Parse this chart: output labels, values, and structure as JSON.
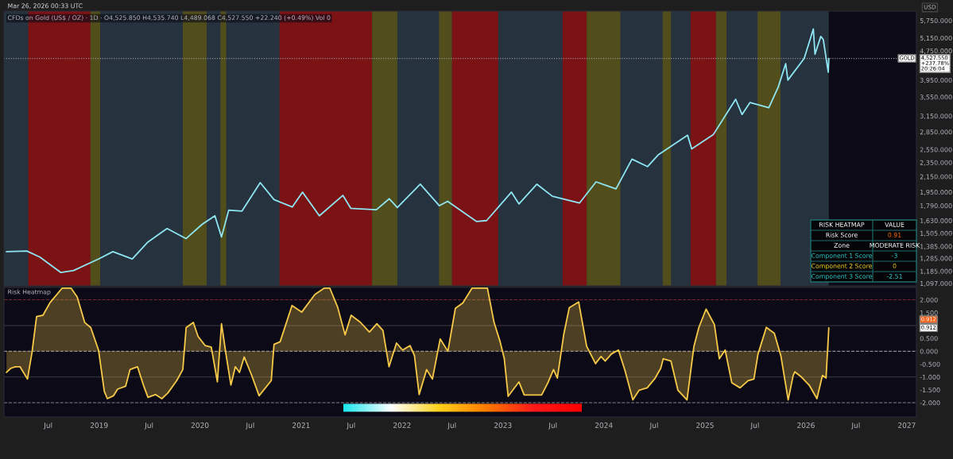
{
  "chart_data": [
    {
      "type": "line",
      "title": "CFDs on Gold (US$ / OZ) · 1D · O4,525.850 H4,535.740 L4,489.068 C4,527.550 +22.240 (+0.49%) Vol 0",
      "log": true,
      "xlim": [
        "2018-01-22",
        "2027-02-05"
      ],
      "ylim": [
        1080,
        6100
      ],
      "tick_labels": "y",
      "yticks": [
        {
          "value": 1097,
          "label": "1,097.000"
        },
        {
          "value": 1185,
          "label": "1,185.000"
        },
        {
          "value": 1285,
          "label": "1,285.000"
        },
        {
          "value": 1385,
          "label": "1,385.000"
        },
        {
          "value": 1505,
          "label": "1,505.000"
        },
        {
          "value": 1630,
          "label": "1,630.000"
        },
        {
          "value": 1790,
          "label": "1,790.000"
        },
        {
          "value": 1950,
          "label": "1,950.000"
        },
        {
          "value": 2150,
          "label": "2,150.000"
        },
        {
          "value": 2350,
          "label": "2,350.000"
        },
        {
          "value": 2550,
          "label": "2,550.000"
        },
        {
          "value": 2850,
          "label": "2,850.000"
        },
        {
          "value": 3150,
          "label": "3,150.000"
        },
        {
          "value": 3550,
          "label": "3,550.000"
        },
        {
          "value": 3950,
          "label": "3,950.000"
        },
        {
          "value": 4750,
          "label": "4,750.000"
        },
        {
          "value": 5150,
          "label": "5,150.000"
        },
        {
          "value": 5750,
          "label": "5,750.000"
        }
      ],
      "bands": [
        {
          "axis": "x",
          "from": "2018-01-22",
          "to": "2026-03-25",
          "color": "#2b3a45"
        },
        {
          "axis": "x",
          "from": "2018-04-20",
          "to": "2018-12-01",
          "color": "#8b0d0d"
        },
        {
          "axis": "x",
          "from": "2018-12-01",
          "to": "2019-01-05",
          "color": "#5a5416"
        },
        {
          "axis": "x",
          "from": "2019-10-31",
          "to": "2020-01-25",
          "color": "#5a5416"
        },
        {
          "axis": "x",
          "from": "2020-03-15",
          "to": "2020-04-05",
          "color": "#5a5416"
        },
        {
          "axis": "x",
          "from": "2020-10-15",
          "to": "2021-09-15",
          "color": "#8b0d0d"
        },
        {
          "axis": "x",
          "from": "2021-09-15",
          "to": "2021-12-15",
          "color": "#5a5416"
        },
        {
          "axis": "x",
          "from": "2022-05-15",
          "to": "2022-07-01",
          "color": "#5a5416"
        },
        {
          "axis": "x",
          "from": "2022-07-01",
          "to": "2022-12-15",
          "color": "#8b0d0d"
        },
        {
          "axis": "x",
          "from": "2023-08-05",
          "to": "2023-10-31",
          "color": "#8b0d0d"
        },
        {
          "axis": "x",
          "from": "2023-10-31",
          "to": "2024-03-01",
          "color": "#5a5416"
        },
        {
          "axis": "x",
          "from": "2024-08-01",
          "to": "2024-08-31",
          "color": "#5a5416"
        },
        {
          "axis": "x",
          "from": "2024-11-10",
          "to": "2025-02-10",
          "color": "#8b0d0d"
        },
        {
          "axis": "x",
          "from": "2025-02-10",
          "to": "2025-03-20",
          "color": "#5a5416"
        },
        {
          "axis": "x",
          "from": "2025-07-10",
          "to": "2025-10-01",
          "color": "#5a5416"
        }
      ],
      "ref_lines": [
        {
          "axis": "y",
          "value": 4527.55,
          "color": "#9598a1",
          "line_style": "dotted"
        }
      ],
      "annotations": [
        "Mar 26, 2026 00:33 UTC",
        "USD",
        "GOLD",
        "4,527.550\n+237.78%\n20:26:04"
      ],
      "x": [
        "2018-01-31",
        "2018-04-15",
        "2018-06-01",
        "2018-08-16",
        "2018-10-01",
        "2018-12-31",
        "2019-02-20",
        "2019-05-01",
        "2019-06-25",
        "2019-09-04",
        "2019-11-12",
        "2020-01-08",
        "2020-02-24",
        "2020-03-19",
        "2020-04-14",
        "2020-06-01",
        "2020-08-06",
        "2020-09-25",
        "2020-11-30",
        "2021-01-06",
        "2021-03-08",
        "2021-06-01",
        "2021-06-30",
        "2021-09-30",
        "2021-11-16",
        "2021-12-15",
        "2022-03-08",
        "2022-05-16",
        "2022-06-15",
        "2022-09-28",
        "2022-11-03",
        "2023-02-01",
        "2023-02-28",
        "2023-05-04",
        "2023-06-29",
        "2023-10-05",
        "2023-12-04",
        "2024-02-14",
        "2024-04-12",
        "2024-06-07",
        "2024-07-17",
        "2024-10-30",
        "2024-11-14",
        "2025-01-31",
        "2025-04-22",
        "2025-05-15",
        "2025-06-13",
        "2025-08-20",
        "2025-09-23",
        "2025-10-20",
        "2025-10-28",
        "2025-12-26",
        "2026-01-28",
        "2026-02-03",
        "2026-02-24",
        "2026-03-05",
        "2026-03-23",
        "2026-03-25"
      ],
      "series": [
        {
          "color": "#8ee6f2",
          "values": [
            1340,
            1345,
            1295,
            1175,
            1190,
            1280,
            1340,
            1280,
            1420,
            1550,
            1455,
            1590,
            1680,
            1470,
            1740,
            1730,
            2070,
            1860,
            1775,
            1950,
            1680,
            1910,
            1760,
            1745,
            1870,
            1770,
            2050,
            1790,
            1840,
            1620,
            1630,
            1950,
            1810,
            2050,
            1900,
            1820,
            2080,
            1990,
            2400,
            2290,
            2470,
            2790,
            2560,
            2800,
            3500,
            3180,
            3430,
            3320,
            3780,
            4380,
            3950,
            4530,
            5450,
            4650,
            5200,
            5100,
            4150,
            4527.55
          ]
        }
      ]
    },
    {
      "type": "area",
      "title": "Risk Heatmap",
      "xlim": [
        "2018-01-22",
        "2027-02-05"
      ],
      "ylim": [
        -2.55,
        2.48
      ],
      "xticks": [
        {
          "value": "2018-07-01",
          "label": "Jul"
        },
        {
          "value": "2019-01-01",
          "label": "2019"
        },
        {
          "value": "2019-07-01",
          "label": "Jul"
        },
        {
          "value": "2020-01-01",
          "label": "2020"
        },
        {
          "value": "2020-07-01",
          "label": "Jul"
        },
        {
          "value": "2021-01-01",
          "label": "2021"
        },
        {
          "value": "2021-07-01",
          "label": "Jul"
        },
        {
          "value": "2022-01-01",
          "label": "2022"
        },
        {
          "value": "2022-07-01",
          "label": "Jul"
        },
        {
          "value": "2023-01-01",
          "label": "2023"
        },
        {
          "value": "2023-07-01",
          "label": "Jul"
        },
        {
          "value": "2024-01-01",
          "label": "2024"
        },
        {
          "value": "2024-07-01",
          "label": "Jul"
        },
        {
          "value": "2025-01-01",
          "label": "2025"
        },
        {
          "value": "2025-07-01",
          "label": "Jul"
        },
        {
          "value": "2026-01-01",
          "label": "2026"
        },
        {
          "value": "2026-07-01",
          "label": "Jul"
        },
        {
          "value": "2027-01-01",
          "label": "2027"
        }
      ],
      "yticks": [
        {
          "value": 2,
          "label": "2.000"
        },
        {
          "value": 1.5,
          "label": "1.500"
        },
        {
          "value": 0.5,
          "label": "0.500"
        },
        {
          "value": 0,
          "label": "0.000"
        },
        {
          "value": -0.5,
          "label": "-0.500"
        },
        {
          "value": -1,
          "label": "-1.000"
        },
        {
          "value": -1.5,
          "label": "-1.500"
        },
        {
          "value": -2,
          "label": "-2.000"
        }
      ],
      "ref_lines": [
        {
          "axis": "y",
          "value": 2,
          "color": "#7a2a2a",
          "line_style": "dashed"
        },
        {
          "axis": "y",
          "value": 1,
          "color": "#3a3a44"
        },
        {
          "axis": "y",
          "value": 0,
          "color": "#8a8a92",
          "line_style": "dashed"
        },
        {
          "axis": "y",
          "value": -1,
          "color": "#3a3a44"
        },
        {
          "axis": "y",
          "value": -2,
          "color": "#6a6a74",
          "line_style": "dashed"
        }
      ],
      "annotations": [
        "0.912",
        "0.912"
      ],
      "x": [
        "2018-01-31",
        "2018-02-16",
        "2018-03-04",
        "2018-03-21",
        "2018-04-17",
        "2018-05-03",
        "2018-05-20",
        "2018-06-12",
        "2018-07-07",
        "2018-08-20",
        "2018-09-22",
        "2018-10-14",
        "2018-11-10",
        "2018-12-02",
        "2018-12-30",
        "2019-01-20",
        "2019-01-31",
        "2019-02-22",
        "2019-03-09",
        "2019-04-07",
        "2019-04-23",
        "2019-05-20",
        "2019-06-12",
        "2019-06-27",
        "2019-07-24",
        "2019-08-16",
        "2019-09-07",
        "2019-10-09",
        "2019-10-31",
        "2019-11-12",
        "2019-12-08",
        "2019-12-25",
        "2020-01-20",
        "2020-02-11",
        "2020-03-04",
        "2020-03-19",
        "2020-04-05",
        "2020-04-22",
        "2020-05-08",
        "2020-05-23",
        "2020-06-09",
        "2020-07-06",
        "2020-08-02",
        "2020-09-15",
        "2020-09-25",
        "2020-10-17",
        "2020-11-29",
        "2021-01-03",
        "2021-02-20",
        "2021-03-25",
        "2021-04-15",
        "2021-05-13",
        "2021-06-09",
        "2021-07-01",
        "2021-08-03",
        "2021-09-05",
        "2021-10-02",
        "2021-10-24",
        "2021-11-15",
        "2021-12-12",
        "2022-01-03",
        "2022-01-30",
        "2022-02-15",
        "2022-03-04",
        "2022-03-31",
        "2022-04-21",
        "2022-05-19",
        "2022-06-16",
        "2022-07-13",
        "2022-08-09",
        "2022-09-11",
        "2022-11-06",
        "2022-11-30",
        "2022-12-22",
        "2023-01-06",
        "2023-01-20",
        "2023-02-28",
        "2023-03-19",
        "2023-05-21",
        "2023-06-13",
        "2023-07-03",
        "2023-07-17",
        "2023-08-09",
        "2023-08-29",
        "2023-10-02",
        "2023-10-31",
        "2023-11-14",
        "2023-12-02",
        "2023-12-22",
        "2024-01-06",
        "2024-01-29",
        "2024-02-23",
        "2024-03-18",
        "2024-04-15",
        "2024-05-08",
        "2024-06-06",
        "2024-07-05",
        "2024-07-25",
        "2024-08-03",
        "2024-08-31",
        "2024-09-25",
        "2024-10-28",
        "2024-11-22",
        "2024-12-10",
        "2025-01-05",
        "2025-02-04",
        "2025-02-22",
        "2025-03-15",
        "2025-04-08",
        "2025-05-08",
        "2025-06-06",
        "2025-06-27",
        "2025-07-12",
        "2025-08-11",
        "2025-09-09",
        "2025-10-03",
        "2025-10-29",
        "2025-11-16",
        "2025-11-22",
        "2025-12-16",
        "2026-01-14",
        "2026-02-10",
        "2026-03-02",
        "2026-03-15",
        "2026-03-25"
      ],
      "series": [
        {
          "color": "#f7c948",
          "values": [
            -0.82,
            -0.66,
            -0.6,
            -0.6,
            -1.08,
            -0.07,
            1.35,
            1.4,
            1.88,
            2.45,
            2.45,
            2.11,
            1.12,
            0.92,
            0.05,
            -1.56,
            -1.84,
            -1.73,
            -1.47,
            -1.36,
            -0.71,
            -0.6,
            -1.36,
            -1.79,
            -1.68,
            -1.84,
            -1.62,
            -1.14,
            -0.71,
            0.92,
            1.12,
            0.58,
            0.22,
            0.16,
            -1.19,
            1.07,
            -0.17,
            -1.31,
            -0.6,
            -0.82,
            -0.22,
            -0.93,
            -1.73,
            -1.14,
            0.27,
            0.37,
            1.78,
            1.52,
            2.21,
            2.45,
            2.45,
            1.72,
            0.64,
            1.4,
            1.13,
            0.75,
            1.07,
            0.81,
            -0.6,
            0.32,
            0.05,
            0.22,
            -0.17,
            -1.68,
            -0.71,
            -1.08,
            0.48,
            0,
            1.67,
            1.88,
            2.45,
            2.45,
            1.12,
            0.37,
            -0.29,
            -1.75,
            -1.19,
            -1.7,
            -1.7,
            -1.22,
            -0.71,
            -1.04,
            0.65,
            1.69,
            1.92,
            0.19,
            -0.1,
            -0.48,
            -0.2,
            -0.38,
            -0.1,
            0.05,
            -0.76,
            -1.89,
            -1.51,
            -1.42,
            -1.04,
            -0.66,
            -0.29,
            -0.38,
            -1.51,
            -1.89,
            0.19,
            0.93,
            1.64,
            1.04,
            -0.29,
            0.05,
            -1.22,
            -1.42,
            -1.14,
            -1.08,
            -0.1,
            0.93,
            0.7,
            -0.2,
            -1.89,
            -0.94,
            -0.8,
            -1.0,
            -1.33,
            -1.84,
            -0.94,
            -1.04,
            0.912
          ]
        }
      ]
    },
    {
      "type": "other",
      "annotations": [
        "RISK HEATMAP",
        "VALUE",
        "Risk Score",
        "0.91",
        "Zone",
        "MODERATE RISK",
        "Component 1 Score",
        "-3",
        "Component 2 Score",
        "0",
        "Component 3 Score",
        "-2.51"
      ]
    }
  ]
}
